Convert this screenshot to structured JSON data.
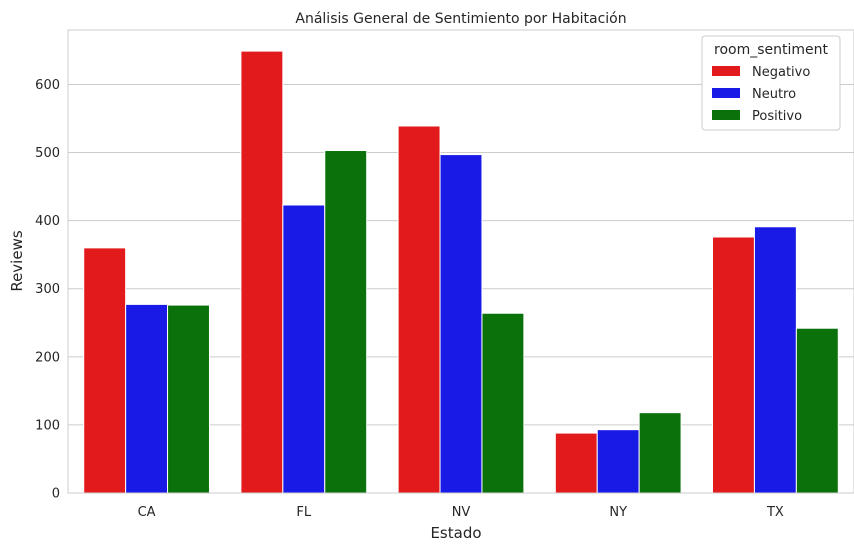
{
  "chart_data": {
    "type": "bar",
    "title": "Análisis General de Sentimiento por Habitación",
    "xlabel": "Estado",
    "ylabel": "Reviews",
    "categories": [
      "CA",
      "FL",
      "NV",
      "NY",
      "TX"
    ],
    "series": [
      {
        "name": "Negativo",
        "color": "#e31a1c",
        "values": [
          360,
          649,
          539,
          88,
          376
        ]
      },
      {
        "name": "Neutro",
        "color": "#1a1ae6",
        "values": [
          277,
          423,
          497,
          93,
          391
        ]
      },
      {
        "name": "Positivo",
        "color": "#0b720b",
        "values": [
          276,
          503,
          264,
          118,
          242
        ]
      }
    ],
    "ylim": [
      0,
      680
    ],
    "yticks": [
      0,
      100,
      200,
      300,
      400,
      500,
      600
    ],
    "grid": true,
    "legend": {
      "title": "room_sentiment",
      "placement": "top-right"
    }
  }
}
